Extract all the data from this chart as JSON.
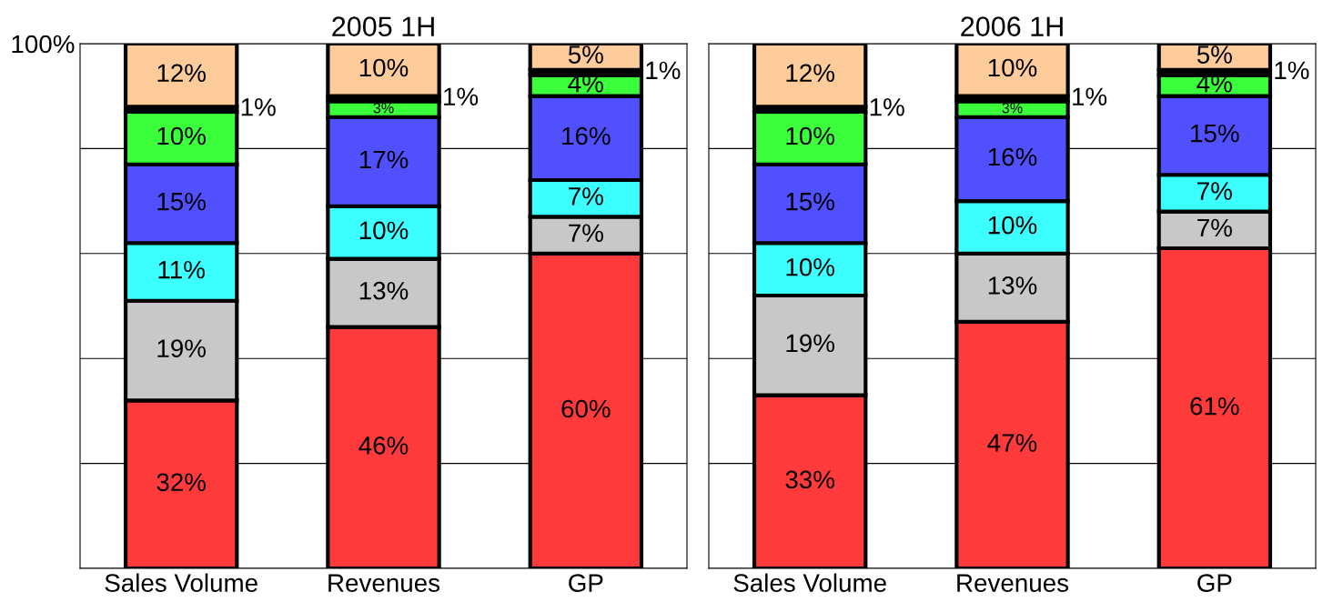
{
  "chart_data": [
    {
      "type": "bar",
      "title": "2005 1H",
      "categories": [
        "Sales Volume",
        "Revenues",
        "GP"
      ],
      "stacked": true,
      "ylim": [
        0,
        100
      ],
      "yticks": [
        {
          "value": 0,
          "label": null
        },
        {
          "value": 20,
          "label": null
        },
        {
          "value": 40,
          "label": null
        },
        {
          "value": 60,
          "label": null
        },
        {
          "value": 80,
          "label": null
        },
        {
          "value": 100,
          "label": "100%"
        }
      ],
      "grid": "y",
      "series": [
        {
          "color": "#ff3a3a",
          "values": [
            32,
            46,
            60
          ],
          "value_labels": [
            "32%",
            "46%",
            "60%"
          ]
        },
        {
          "color": "#c8c8c8",
          "values": [
            19,
            13,
            7
          ],
          "value_labels": [
            "19%",
            "13%",
            "7%"
          ]
        },
        {
          "color": "#3cffff",
          "values": [
            11,
            10,
            7
          ],
          "value_labels": [
            "11%",
            "10%",
            "7%"
          ]
        },
        {
          "color": "#5050ff",
          "values": [
            15,
            17,
            16
          ],
          "value_labels": [
            "15%",
            "17%",
            "16%"
          ]
        },
        {
          "color": "#3cff3c",
          "values": [
            10,
            3,
            4
          ],
          "value_labels": [
            "10%",
            "3%",
            "4%"
          ]
        },
        {
          "color": "#000000",
          "values": [
            1,
            1,
            1
          ],
          "value_labels": [
            "1%",
            "1%",
            "1%"
          ]
        },
        {
          "color": "#fdcc9a",
          "values": [
            12,
            10,
            5
          ],
          "value_labels": [
            "12%",
            "10%",
            "5%"
          ]
        }
      ]
    },
    {
      "type": "bar",
      "title": "2006 1H",
      "categories": [
        "Sales Volume",
        "Revenues",
        "GP"
      ],
      "stacked": true,
      "ylim": [
        0,
        100
      ],
      "yticks": [
        {
          "value": 0,
          "label": null
        },
        {
          "value": 20,
          "label": null
        },
        {
          "value": 40,
          "label": null
        },
        {
          "value": 60,
          "label": null
        },
        {
          "value": 80,
          "label": null
        },
        {
          "value": 100,
          "label": null
        }
      ],
      "grid": "y",
      "tick_labels": "x",
      "series": [
        {
          "color": "#ff3a3a",
          "values": [
            33,
            47,
            61
          ],
          "value_labels": [
            "33%",
            "47%",
            "61%"
          ]
        },
        {
          "color": "#c8c8c8",
          "values": [
            19,
            13,
            7
          ],
          "value_labels": [
            "19%",
            "13%",
            "7%"
          ]
        },
        {
          "color": "#3cffff",
          "values": [
            10,
            10,
            7
          ],
          "value_labels": [
            "10%",
            "10%",
            "7%"
          ]
        },
        {
          "color": "#5050ff",
          "values": [
            15,
            16,
            15
          ],
          "value_labels": [
            "15%",
            "16%",
            "15%"
          ]
        },
        {
          "color": "#3cff3c",
          "values": [
            10,
            3,
            4
          ],
          "value_labels": [
            "10%",
            "3%",
            "4%"
          ]
        },
        {
          "color": "#000000",
          "values": [
            1,
            1,
            1
          ],
          "value_labels": [
            "1%",
            "1%",
            "1%"
          ]
        },
        {
          "color": "#fdcc9a",
          "values": [
            12,
            10,
            5
          ],
          "value_labels": [
            "12%",
            "10%",
            "5%"
          ]
        }
      ]
    }
  ]
}
